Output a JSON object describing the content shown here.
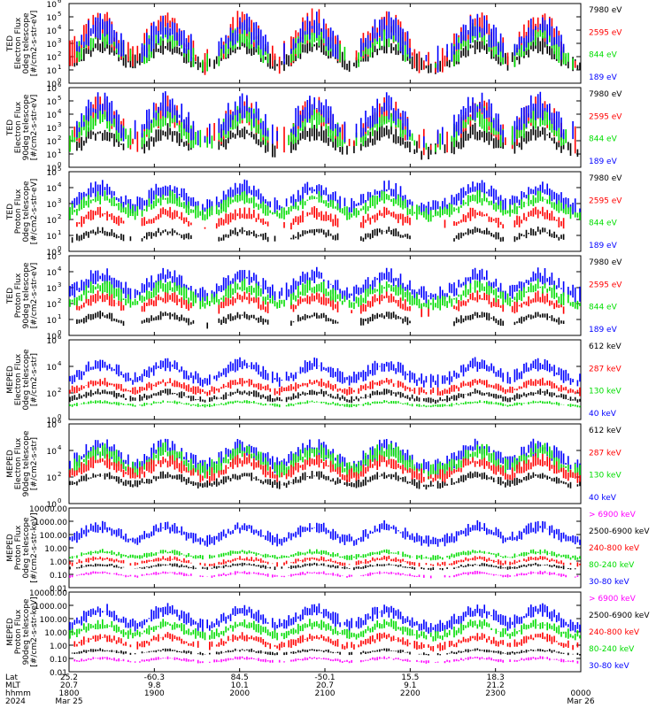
{
  "chart_data": [
    {
      "type": "line",
      "ylabel": [
        "TED",
        "Electron Flux",
        "0deg telescope",
        "[#/cm2-s-str-eV]"
      ],
      "log_scale": true,
      "ylim": [
        1,
        1000000
      ],
      "yticks": [
        "10",
        "10",
        "10",
        "10",
        "10",
        "10",
        "10"
      ],
      "yexp": [
        "0",
        "1",
        "2",
        "3",
        "4",
        "5",
        "6"
      ],
      "series": [
        {
          "name": "7980 eV",
          "color": "#000000",
          "level": 1.2,
          "spread": 1.0,
          "duty": 0.85
        },
        {
          "name": "2595 eV",
          "color": "#ff0000",
          "level": 1.4,
          "spread": 1.8,
          "duty": 0.3
        },
        {
          "name": "844 eV",
          "color": "#00dd00",
          "level": 1.3,
          "spread": 1.4,
          "duty": 0.25
        },
        {
          "name": "189 eV",
          "color": "#0000ff",
          "level": 1.6,
          "spread": 1.6,
          "duty": 0.1
        }
      ]
    },
    {
      "type": "line",
      "ylabel": [
        "TED",
        "Electron Flux",
        "90deg telescope",
        "[#/cm2-s-str-eV]"
      ],
      "log_scale": true,
      "ylim": [
        1,
        1000000
      ],
      "yticks": [
        "10",
        "10",
        "10",
        "10",
        "10",
        "10",
        "10"
      ],
      "yexp": [
        "0",
        "1",
        "2",
        "3",
        "4",
        "5",
        "6"
      ],
      "series": [
        {
          "name": "7980 eV",
          "color": "#000000",
          "level": 1.0,
          "spread": 1.0,
          "duty": 0.3
        },
        {
          "name": "2595 eV",
          "color": "#ff0000",
          "level": 1.6,
          "spread": 1.6,
          "duty": 0.3
        },
        {
          "name": "844 eV",
          "color": "#00dd00",
          "level": 1.5,
          "spread": 1.4,
          "duty": 0.3
        },
        {
          "name": "189 eV",
          "color": "#0000ff",
          "level": 1.9,
          "spread": 1.6,
          "duty": 0.2
        }
      ]
    },
    {
      "type": "line",
      "ylabel": [
        "TED",
        "Proton Flux",
        "0deg telescope",
        "[#/cm2-s-str-eV]"
      ],
      "log_scale": true,
      "ylim": [
        1,
        100000
      ],
      "yticks": [
        "10",
        "10",
        "10",
        "10",
        "10",
        "10"
      ],
      "yexp": [
        "0",
        "1",
        "2",
        "3",
        "4",
        "5"
      ],
      "series": [
        {
          "name": "7980 eV",
          "color": "#000000",
          "level": 0.6,
          "spread": 0.4,
          "duty": 0.05
        },
        {
          "name": "2595 eV",
          "color": "#ff0000",
          "level": 1.4,
          "spread": 0.6,
          "duty": 0.05
        },
        {
          "name": "189 eV",
          "color": "#0000ff",
          "level": 2.6,
          "spread": 0.8,
          "duty": 0.85
        },
        {
          "name": "844 eV",
          "color": "#00dd00",
          "level": 2.2,
          "spread": 0.7,
          "duty": 0.95
        }
      ]
    },
    {
      "type": "line",
      "ylabel": [
        "TED",
        "Proton Flux",
        "90deg telescope",
        "[#/cm2-s-str-eV]"
      ],
      "log_scale": true,
      "ylim": [
        1,
        100000
      ],
      "yticks": [
        "10",
        "10",
        "10",
        "10",
        "10",
        "10"
      ],
      "yexp": [
        "0",
        "1",
        "2",
        "3",
        "4",
        "5"
      ],
      "series": [
        {
          "name": "7980 eV",
          "color": "#000000",
          "level": 0.6,
          "spread": 0.4,
          "duty": 0.05
        },
        {
          "name": "2595 eV",
          "color": "#ff0000",
          "level": 1.4,
          "spread": 0.6,
          "duty": 0.05
        },
        {
          "name": "189 eV",
          "color": "#0000ff",
          "level": 2.4,
          "spread": 0.8,
          "duty": 0.85
        },
        {
          "name": "844 eV",
          "color": "#00dd00",
          "level": 1.9,
          "spread": 0.7,
          "duty": 0.95
        }
      ]
    },
    {
      "type": "line",
      "ylabel": [
        "MEPED",
        "Electron Flux",
        "0deg telescope",
        "[#/cm2-s-str]"
      ],
      "log_scale": true,
      "ylim": [
        1,
        1000000
      ],
      "yticks": [
        "10",
        "10",
        "10",
        "10"
      ],
      "yexp": [
        "0",
        "2",
        "4",
        "6"
      ],
      "series": [
        {
          "name": "612 keV",
          "color": "#000000",
          "level": 1.4,
          "spread": 0.4,
          "duty": 0.9
        },
        {
          "name": "40 keV",
          "color": "#0000ff",
          "level": 2.8,
          "spread": 0.8,
          "duty": 0.9
        },
        {
          "name": "287 keV",
          "color": "#ff0000",
          "level": 2.0,
          "spread": 0.5,
          "duty": 0.9
        },
        {
          "name": "130 keV",
          "color": "#00dd00",
          "level": 1.0,
          "spread": 0.2,
          "duty": 0.9
        }
      ]
    },
    {
      "type": "line",
      "ylabel": [
        "MEPED",
        "Electron Flux",
        "90deg telescope",
        "[#/cm2-s-str]"
      ],
      "log_scale": true,
      "ylim": [
        1,
        1000000
      ],
      "yticks": [
        "10",
        "10",
        "10",
        "10"
      ],
      "yexp": [
        "0",
        "2",
        "4",
        "6"
      ],
      "series": [
        {
          "name": "612 keV",
          "color": "#000000",
          "level": 1.3,
          "spread": 0.5,
          "duty": 0.9
        },
        {
          "name": "40 keV",
          "color": "#0000ff",
          "level": 2.6,
          "spread": 1.0,
          "duty": 0.9
        },
        {
          "name": "130 keV",
          "color": "#00dd00",
          "level": 2.3,
          "spread": 1.0,
          "duty": 0.9
        },
        {
          "name": "287 keV",
          "color": "#ff0000",
          "level": 1.9,
          "spread": 0.8,
          "duty": 0.9
        }
      ]
    },
    {
      "type": "line",
      "ylabel": [
        "MEPED",
        "Proton Flux",
        "0deg telescope",
        "[#/cm2-s-str-keV]"
      ],
      "log_scale": true,
      "ylim": [
        0.01,
        10000
      ],
      "yticks": [
        "10000.00",
        "1000.00",
        "100.00",
        "10.00",
        "1.00",
        "0.10",
        "0.01"
      ],
      "series": [
        {
          "name": "30-80 keV",
          "color": "#0000ff",
          "level": 1.4,
          "spread": 0.7,
          "duty": 0.95
        },
        {
          "name": "80-240 keV",
          "color": "#00dd00",
          "level": 0.2,
          "spread": 0.3,
          "duty": 0.9
        },
        {
          "name": "240-800 keV",
          "color": "#ff0000",
          "level": -0.3,
          "spread": 0.3,
          "duty": 0.6
        },
        {
          "name": "2500-6900 keV",
          "color": "#000000",
          "level": -0.6,
          "spread": 0.2,
          "duty": 0.6
        },
        {
          "name": "> 6900 keV",
          "color": "#ff00ff",
          "level": -1.2,
          "spread": 0.2,
          "duty": 0.5
        }
      ]
    },
    {
      "type": "line",
      "ylabel": [
        "MEPED",
        "Proton Flux",
        "90deg telescope",
        "[#/cm2-s-str-keV]"
      ],
      "log_scale": true,
      "ylim": [
        0.01,
        10000
      ],
      "yticks": [
        "10000.00",
        "1000.00",
        "100.00",
        "10.00",
        "1.00",
        "0.10",
        "0.01"
      ],
      "series": [
        {
          "name": "30-80 keV",
          "color": "#0000ff",
          "level": 1.3,
          "spread": 0.8,
          "duty": 0.95
        },
        {
          "name": "80-240 keV",
          "color": "#00dd00",
          "level": 0.6,
          "spread": 0.6,
          "duty": 0.9
        },
        {
          "name": "240-800 keV",
          "color": "#ff0000",
          "level": -0.2,
          "spread": 0.5,
          "duty": 0.6
        },
        {
          "name": "2500-6900 keV",
          "color": "#000000",
          "level": -0.7,
          "spread": 0.2,
          "duty": 0.6
        },
        {
          "name": "> 6900 keV",
          "color": "#ff00ff",
          "level": -1.3,
          "spread": 0.2,
          "duty": 0.5
        }
      ]
    }
  ],
  "time_axis": {
    "xlim": [
      "2024-03-25 18:00",
      "2024-03-26 00:00"
    ],
    "row_labels": [
      "Lat",
      "MLT",
      "hhmm",
      "2024"
    ],
    "ticks": [
      {
        "lat": "25.2",
        "mlt": "20.7",
        "hhmm": "1800",
        "date": "Mar 25"
      },
      {
        "lat": "-60.3",
        "mlt": "9.8",
        "hhmm": "1900",
        "date": ""
      },
      {
        "lat": "84.5",
        "mlt": "10.1",
        "hhmm": "2000",
        "date": ""
      },
      {
        "lat": "-50.1",
        "mlt": "20.7",
        "hhmm": "2100",
        "date": ""
      },
      {
        "lat": "15.5",
        "mlt": "9.1",
        "hhmm": "2200",
        "date": ""
      },
      {
        "lat": "18.3",
        "mlt": "21.2",
        "hhmm": "2300",
        "date": ""
      },
      {
        "lat": "",
        "mlt": "",
        "hhmm": "0000",
        "date": "Mar 26"
      }
    ]
  }
}
